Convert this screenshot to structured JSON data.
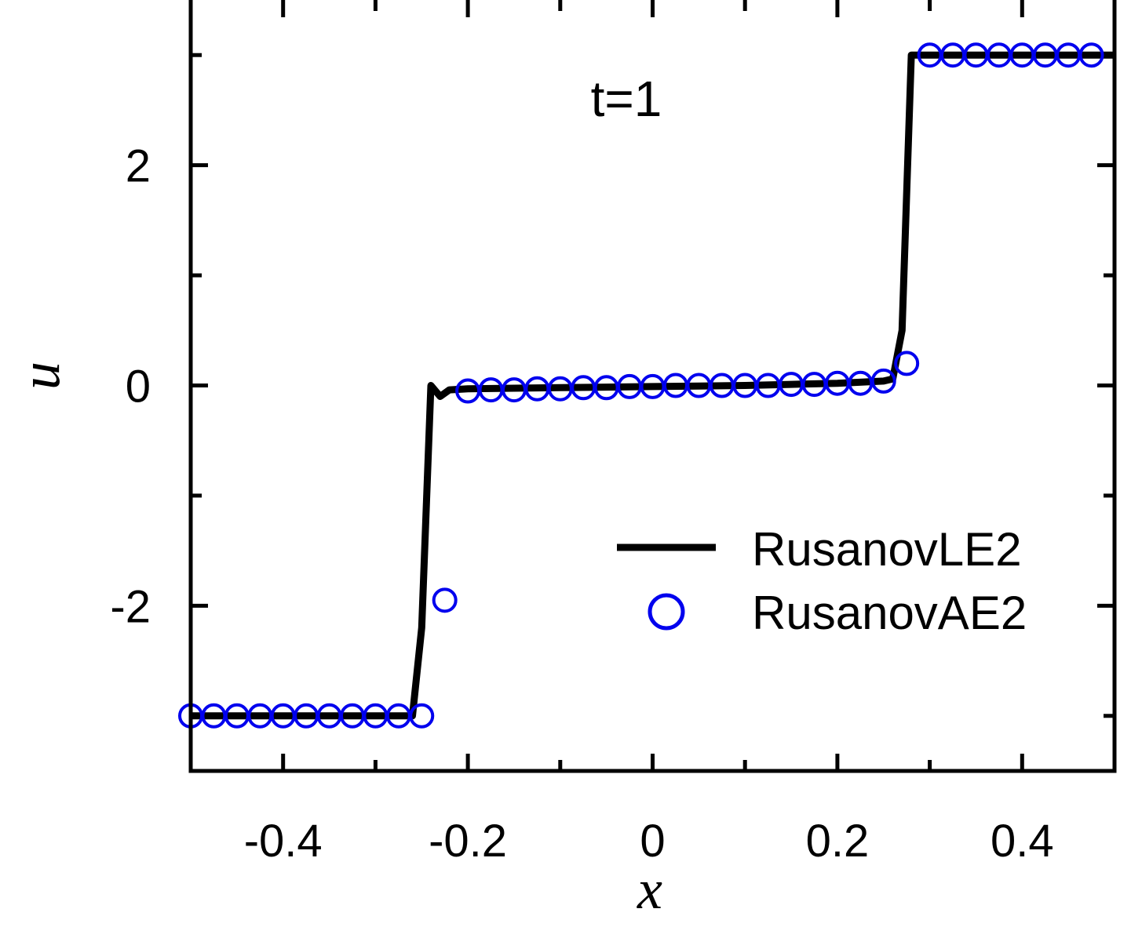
{
  "chart_data": {
    "type": "line",
    "title": "",
    "xlabel": "x",
    "ylabel": "u",
    "annotation": "t=1",
    "xlim": [
      -0.5,
      0.5
    ],
    "ylim": [
      -3.5,
      3.5
    ],
    "x_major_ticks": [
      -0.4,
      -0.2,
      0,
      0.2,
      0.4
    ],
    "x_tick_labels": [
      "-0.4",
      "-0.2",
      "0",
      "0.2",
      "0.4"
    ],
    "x_minor_ticks": [
      -0.3,
      -0.1,
      0.1,
      0.3
    ],
    "y_major_ticks": [
      -2,
      0,
      2
    ],
    "y_tick_labels": [
      "-2",
      "0",
      "2"
    ],
    "y_minor_ticks": [
      -3,
      -1,
      1,
      3
    ],
    "grid": false,
    "legend_position": "bottom-right",
    "series": [
      {
        "name": "RusanovLE2",
        "style": "line",
        "color": "#000000",
        "x": [
          -0.5,
          -0.26,
          -0.25,
          -0.24,
          -0.23,
          -0.22,
          -0.2,
          -0.15,
          -0.1,
          -0.05,
          0,
          0.05,
          0.1,
          0.15,
          0.2,
          0.25,
          0.26,
          0.27,
          0.28,
          0.3,
          0.5
        ],
        "y": [
          -3.0,
          -3.0,
          -2.2,
          0.0,
          -0.1,
          -0.04,
          -0.03,
          -0.025,
          -0.02,
          -0.015,
          -0.01,
          -0.005,
          0.0,
          0.01,
          0.02,
          0.04,
          0.06,
          0.5,
          3.0,
          3.0,
          3.0
        ]
      },
      {
        "name": "RusanovAE2",
        "style": "marker",
        "marker": "open-circle",
        "color": "#0000ee",
        "x": [
          -0.5,
          -0.475,
          -0.45,
          -0.425,
          -0.4,
          -0.375,
          -0.35,
          -0.325,
          -0.3,
          -0.275,
          -0.25,
          -0.225,
          -0.2,
          -0.175,
          -0.15,
          -0.125,
          -0.1,
          -0.075,
          -0.05,
          -0.025,
          0,
          0.025,
          0.05,
          0.075,
          0.1,
          0.125,
          0.15,
          0.175,
          0.2,
          0.225,
          0.25,
          0.275,
          0.3,
          0.325,
          0.35,
          0.375,
          0.4,
          0.425,
          0.45,
          0.475
        ],
        "y": [
          -3.0,
          -3.0,
          -3.0,
          -3.0,
          -3.0,
          -3.0,
          -3.0,
          -3.0,
          -3.0,
          -3.0,
          -3.0,
          -1.95,
          -0.05,
          -0.04,
          -0.04,
          -0.03,
          -0.03,
          -0.02,
          -0.02,
          -0.01,
          -0.01,
          0.0,
          0.0,
          0.0,
          0.0,
          0.0,
          0.01,
          0.01,
          0.02,
          0.02,
          0.04,
          0.2,
          3.0,
          3.0,
          3.0,
          3.0,
          3.0,
          3.0,
          3.0,
          3.0
        ]
      }
    ]
  }
}
